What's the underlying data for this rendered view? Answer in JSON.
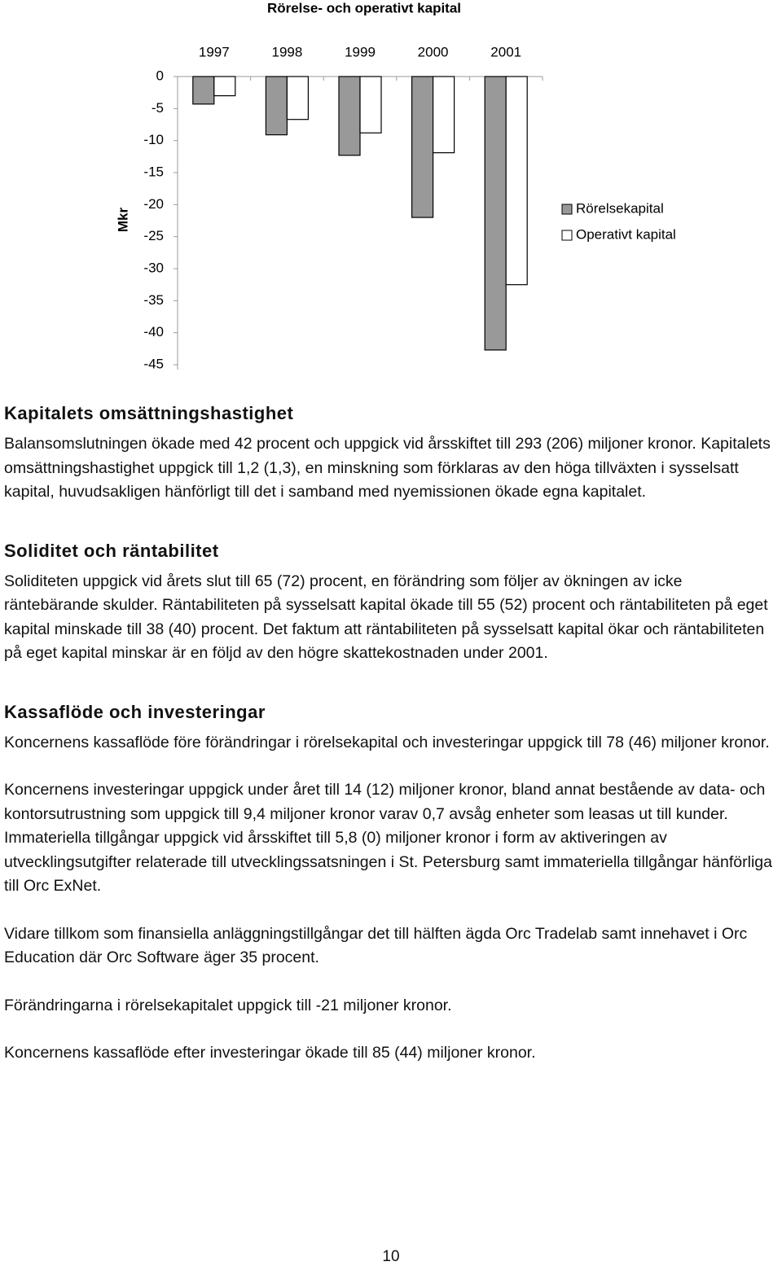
{
  "chart_data": {
    "type": "bar",
    "title": "Rörelse- och operativt kapital",
    "y_label": "Mkr",
    "categories": [
      "1997",
      "1998",
      "1999",
      "2000",
      "2001"
    ],
    "series": [
      {
        "name": "Rörelsekapital",
        "color": "#999999",
        "values": [
          -4.3,
          -9.1,
          -12.3,
          -22,
          -42.7
        ]
      },
      {
        "name": "Operativt kapital",
        "color": "#ffffff",
        "values": [
          -3,
          -6.7,
          -8.8,
          -11.9,
          -32.5
        ]
      }
    ],
    "ylim": [
      -45,
      0
    ],
    "yticks": [
      0,
      -5,
      -10,
      -15,
      -20,
      -25,
      -30,
      -35,
      -40,
      -45
    ],
    "legend": "right"
  },
  "sections": [
    {
      "heading": "Kapitalets omsättningshastighet",
      "paragraphs": [
        "Balansomslutningen ökade med 42 procent och uppgick vid årsskiftet till 293 (206) miljoner kronor. Kapitalets omsättningshastighet uppgick till 1,2 (1,3), en minskning som förklaras av den höga tillväxten i sysselsatt kapital, huvudsakligen hänförligt till det i samband med nyemissionen ökade egna kapitalet."
      ]
    },
    {
      "heading": "Soliditet och räntabilitet",
      "paragraphs": [
        "Soliditeten uppgick vid årets slut till 65 (72) procent, en förändring som följer av ökningen av icke räntebärande skulder. Räntabiliteten på sysselsatt kapital ökade till 55 (52) procent och räntabiliteten på eget kapital minskade till 38 (40) procent. Det faktum att räntabiliteten på sysselsatt kapital ökar och räntabiliteten på eget kapital minskar är en följd av den högre skattekostnaden under 2001."
      ]
    },
    {
      "heading": "Kassaflöde och investeringar",
      "paragraphs": [
        "Koncernens kassaflöde före förändringar i rörelsekapital och investeringar uppgick till 78 (46) miljoner kronor.",
        "Koncernens investeringar uppgick under året till 14 (12) miljoner kronor, bland annat bestående av data- och kontorsutrustning som uppgick till 9,4 miljoner kronor varav 0,7 avsåg enheter som leasas ut till kunder. Immateriella tillgångar uppgick vid årsskiftet till 5,8 (0) miljoner kronor i form av aktiveringen av utvecklingsutgifter relaterade till utvecklingssatsningen i St. Petersburg samt immateriella tillgångar hänförliga till Orc ExNet.",
        "Vidare tillkom som finansiella anläggningstillgångar det till hälften ägda Orc Tradelab samt innehavet i Orc Education där Orc Software äger 35 procent.",
        "Förändringarna i rörelsekapitalet uppgick till -21 miljoner kronor.",
        "Koncernens kassaflöde efter investeringar ökade till 85 (44) miljoner kronor."
      ]
    }
  ],
  "page_number": "10"
}
